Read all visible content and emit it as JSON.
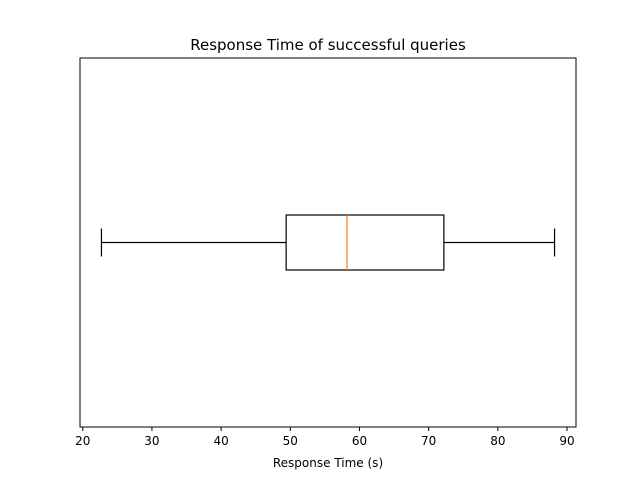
{
  "chart_data": {
    "type": "boxplot",
    "orientation": "horizontal",
    "title": "Response Time of successful queries",
    "xlabel": "Response Time (s)",
    "ylabel": "",
    "xlim": [
      19.6,
      91.3
    ],
    "xticks": [
      20,
      30,
      40,
      50,
      60,
      70,
      80,
      90
    ],
    "yticks_shown": false,
    "grid": false,
    "box": {
      "whisker_low": 22.7,
      "q1": 49.4,
      "median": 58.2,
      "q3": 72.2,
      "whisker_high": 88.2
    },
    "colors": {
      "box": "#000000",
      "median": "#ff7f0e",
      "whisker": "#000000"
    }
  }
}
